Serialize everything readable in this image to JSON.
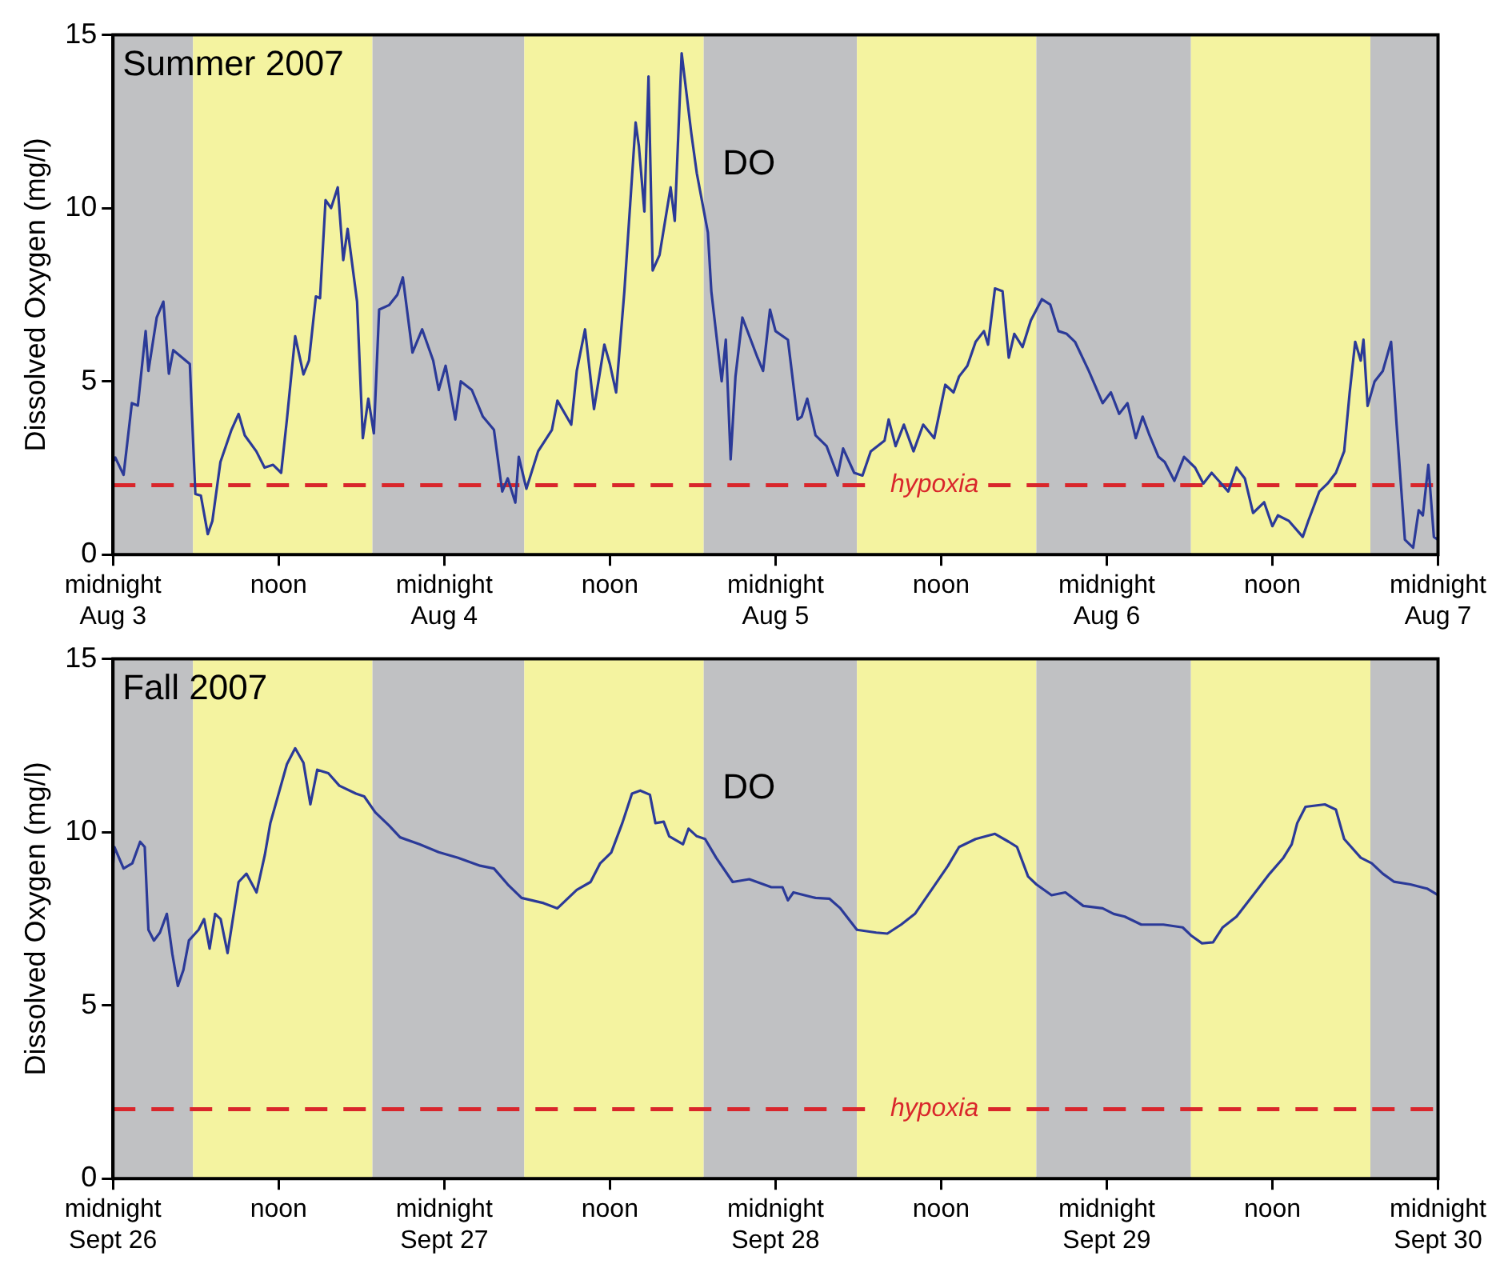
{
  "chart_data": [
    {
      "type": "line",
      "title": "Summer 2007",
      "ylabel": "Dissolved Oxygen (mg/l)",
      "xlim": [
        "2007-08-03T00:00",
        "2007-08-07T00:00"
      ],
      "xticks": [
        {
          "value": "2007-08-03T00:00",
          "label": "midnight\nAug 3"
        },
        {
          "value": "2007-08-03T12:00",
          "label": "noon"
        },
        {
          "value": "2007-08-04T00:00",
          "label": "midnight\nAug 4"
        },
        {
          "value": "2007-08-04T12:00",
          "label": "noon"
        },
        {
          "value": "2007-08-05T00:00",
          "label": "midnight\nAug 5"
        },
        {
          "value": "2007-08-05T12:00",
          "label": "noon"
        },
        {
          "value": "2007-08-06T00:00",
          "label": "midnight\nAug 6"
        },
        {
          "value": "2007-08-06T12:00",
          "label": "noon"
        },
        {
          "value": "2007-08-07T00:00",
          "label": "midnight\nAug 7"
        }
      ],
      "ylim": [
        0,
        15
      ],
      "yticks": [
        0,
        5,
        10,
        15
      ],
      "grid": false,
      "legend": false,
      "x": [
        "2007-08-03T00:00",
        "2007-08-03T00:10",
        "2007-08-03T00:46",
        "2007-08-03T01:22",
        "2007-08-03T01:48",
        "2007-08-03T02:22",
        "2007-08-03T02:34",
        "2007-08-03T03:10",
        "2007-08-03T03:39",
        "2007-08-03T04:03",
        "2007-08-03T04:22",
        "2007-08-03T05:34",
        "2007-08-03T05:58",
        "2007-08-03T06:22",
        "2007-08-03T06:52",
        "2007-08-03T07:12",
        "2007-08-03T07:47",
        "2007-08-03T08:35",
        "2007-08-03T09:06",
        "2007-08-03T09:33",
        "2007-08-03T10:23",
        "2007-08-03T10:59",
        "2007-08-03T11:36",
        "2007-08-03T12:11",
        "2007-08-03T12:36",
        "2007-08-03T13:12",
        "2007-08-03T13:48",
        "2007-08-03T14:12",
        "2007-08-03T14:42",
        "2007-08-03T15:00",
        "2007-08-03T15:24",
        "2007-08-03T15:48",
        "2007-08-03T16:17",
        "2007-08-03T16:41",
        "2007-08-03T17:00",
        "2007-08-03T17:41",
        "2007-08-03T18:06",
        "2007-08-03T18:30",
        "2007-08-03T18:54",
        "2007-08-03T19:17",
        "2007-08-03T20:00",
        "2007-08-03T20:36",
        "2007-08-03T21:00",
        "2007-08-03T21:42",
        "2007-08-03T22:24",
        "2007-08-03T23:12",
        "2007-08-03T23:36",
        "2007-08-04T00:06",
        "2007-08-04T00:48",
        "2007-08-04T01:12",
        "2007-08-04T02:00",
        "2007-08-04T02:48",
        "2007-08-04T03:36",
        "2007-08-04T04:12",
        "2007-08-04T04:36",
        "2007-08-04T05:09",
        "2007-08-04T05:24",
        "2007-08-04T05:57",
        "2007-08-04T06:48",
        "2007-08-04T07:48",
        "2007-08-04T08:12",
        "2007-08-04T09:12",
        "2007-08-04T09:36",
        "2007-08-04T10:12",
        "2007-08-04T10:51",
        "2007-08-04T11:36",
        "2007-08-04T12:00",
        "2007-08-04T12:27",
        "2007-08-04T13:03",
        "2007-08-04T13:52",
        "2007-08-04T14:06",
        "2007-08-04T14:30",
        "2007-08-04T14:48",
        "2007-08-04T15:06",
        "2007-08-04T15:36",
        "2007-08-04T16:24",
        "2007-08-04T16:42",
        "2007-08-04T17:12",
        "2007-08-04T17:54",
        "2007-08-04T18:18",
        "2007-08-04T19:06",
        "2007-08-04T19:21",
        "2007-08-04T20:06",
        "2007-08-04T20:24",
        "2007-08-04T20:45",
        "2007-08-04T21:06",
        "2007-08-04T21:36",
        "2007-08-04T22:42",
        "2007-08-04T23:06",
        "2007-08-04T23:36",
        "2007-08-05T00:00",
        "2007-08-05T00:54",
        "2007-08-05T01:36",
        "2007-08-05T01:54",
        "2007-08-05T02:18",
        "2007-08-05T02:54",
        "2007-08-05T03:42",
        "2007-08-05T04:30",
        "2007-08-05T04:54",
        "2007-08-05T05:42",
        "2007-08-05T06:18",
        "2007-08-05T06:54",
        "2007-08-05T07:54",
        "2007-08-05T08:12",
        "2007-08-05T08:42",
        "2007-08-05T09:18",
        "2007-08-05T10:00",
        "2007-08-05T10:42",
        "2007-08-05T11:30",
        "2007-08-05T12:18",
        "2007-08-05T12:54",
        "2007-08-05T13:18",
        "2007-08-05T13:54",
        "2007-08-05T14:30",
        "2007-08-05T15:06",
        "2007-08-05T15:24",
        "2007-08-05T15:54",
        "2007-08-05T16:27",
        "2007-08-05T16:54",
        "2007-08-05T17:18",
        "2007-08-05T17:54",
        "2007-08-05T18:30",
        "2007-08-05T19:18",
        "2007-08-05T19:54",
        "2007-08-05T20:30",
        "2007-08-05T21:06",
        "2007-08-05T21:42",
        "2007-08-05T22:42",
        "2007-08-05T23:42",
        "2007-08-06T00:18",
        "2007-08-06T00:54",
        "2007-08-06T01:30",
        "2007-08-06T02:06",
        "2007-08-06T02:36",
        "2007-08-06T03:06",
        "2007-08-06T03:45",
        "2007-08-06T04:12",
        "2007-08-06T04:54",
        "2007-08-06T05:36",
        "2007-08-06T06:24",
        "2007-08-06T07:00",
        "2007-08-06T07:36",
        "2007-08-06T08:48",
        "2007-08-06T09:24",
        "2007-08-06T10:00",
        "2007-08-06T10:36",
        "2007-08-06T11:24",
        "2007-08-06T12:00",
        "2007-08-06T12:24",
        "2007-08-06T13:12",
        "2007-08-06T14:12",
        "2007-08-06T14:36",
        "2007-08-06T15:24",
        "2007-08-06T16:00",
        "2007-08-06T16:36",
        "2007-08-06T17:12",
        "2007-08-06T17:36",
        "2007-08-06T18:00",
        "2007-08-06T18:24",
        "2007-08-06T18:36",
        "2007-08-06T18:54",
        "2007-08-06T19:24",
        "2007-08-06T20:00",
        "2007-08-06T20:36",
        "2007-08-06T21:00",
        "2007-08-06T21:36",
        "2007-08-06T22:12",
        "2007-08-06T22:36",
        "2007-08-06T22:54",
        "2007-08-06T23:18",
        "2007-08-06T23:42",
        "2007-08-07T00:00"
      ],
      "series": [
        {
          "color": "#2b3a98",
          "values": [
            2.67,
            2.8,
            2.3,
            4.37,
            4.3,
            6.45,
            5.3,
            6.84,
            7.3,
            5.22,
            5.9,
            5.5,
            1.75,
            1.7,
            0.59,
            0.97,
            2.67,
            3.6,
            4.06,
            3.44,
            2.98,
            2.51,
            2.59,
            2.36,
            3.9,
            6.3,
            5.2,
            5.6,
            7.45,
            7.4,
            10.23,
            10.0,
            10.6,
            8.5,
            9.4,
            7.3,
            3.36,
            4.5,
            3.5,
            7.07,
            7.2,
            7.5,
            8.0,
            5.83,
            6.5,
            5.6,
            4.75,
            5.45,
            3.9,
            5.0,
            4.75,
            3.98,
            3.6,
            1.82,
            2.2,
            1.5,
            2.82,
            1.9,
            2.98,
            3.6,
            4.44,
            3.75,
            5.3,
            6.5,
            4.2,
            6.06,
            5.5,
            4.68,
            7.6,
            12.47,
            11.8,
            9.9,
            13.8,
            8.2,
            8.65,
            10.6,
            9.63,
            14.47,
            12.16,
            11.0,
            9.3,
            7.6,
            5.0,
            6.2,
            2.75,
            5.14,
            6.84,
            5.68,
            5.3,
            7.07,
            6.45,
            6.2,
            3.9,
            3.98,
            4.5,
            3.44,
            3.13,
            2.28,
            3.06,
            2.36,
            2.28,
            2.98,
            3.29,
            3.9,
            3.13,
            3.75,
            2.98,
            3.75,
            3.36,
            4.9,
            4.68,
            5.14,
            5.45,
            6.14,
            6.45,
            6.06,
            7.68,
            7.6,
            5.68,
            6.37,
            5.99,
            6.76,
            7.37,
            7.22,
            6.45,
            6.37,
            6.14,
            5.3,
            4.37,
            4.68,
            4.06,
            4.37,
            3.36,
            3.98,
            3.44,
            2.82,
            2.67,
            2.13,
            2.82,
            2.51,
            2.05,
            2.36,
            1.82,
            2.51,
            2.2,
            1.2,
            1.51,
            0.82,
            1.13,
            0.97,
            0.51,
            0.97,
            1.82,
            2.05,
            2.36,
            2.98,
            4.68,
            6.14,
            5.6,
            6.2,
            4.29,
            4.99,
            5.3,
            6.14,
            3.75,
            0.43,
            0.2,
            1.28,
            1.13,
            2.59,
            0.51,
            0.43
          ]
        }
      ],
      "ref_lines": [
        {
          "axis": "y",
          "value": 2,
          "label": "hypoxia",
          "color": "#d9262b",
          "line_style": "dashed"
        }
      ],
      "bands": [
        {
          "axis": "x",
          "from": "2007-08-03T00:00",
          "to": "2007-08-03T05:48",
          "color": "#c0c1c3"
        },
        {
          "axis": "x",
          "from": "2007-08-03T05:48",
          "to": "2007-08-03T18:48",
          "color": "#f4f3a0"
        },
        {
          "axis": "x",
          "from": "2007-08-03T18:48",
          "to": "2007-08-04T05:48",
          "color": "#c0c1c3"
        },
        {
          "axis": "x",
          "from": "2007-08-04T05:48",
          "to": "2007-08-04T18:48",
          "color": "#f4f3a0"
        },
        {
          "axis": "x",
          "from": "2007-08-04T18:48",
          "to": "2007-08-05T05:54",
          "color": "#c0c1c3"
        },
        {
          "axis": "x",
          "from": "2007-08-05T05:54",
          "to": "2007-08-05T18:54",
          "color": "#f4f3a0"
        },
        {
          "axis": "x",
          "from": "2007-08-05T18:54",
          "to": "2007-08-06T06:06",
          "color": "#c0c1c3"
        },
        {
          "axis": "x",
          "from": "2007-08-06T06:06",
          "to": "2007-08-06T19:06",
          "color": "#f4f3a0"
        },
        {
          "axis": "x",
          "from": "2007-08-06T19:06",
          "to": "2007-08-07T00:00",
          "color": "#c0c1c3"
        }
      ],
      "annotations": [
        "DO"
      ]
    },
    {
      "type": "line",
      "title": "Fall 2007",
      "ylabel": "Dissolved Oxygen (mg/l)",
      "xlim": [
        "2007-09-26T00:00",
        "2007-09-30T00:00"
      ],
      "xticks": [
        {
          "value": "2007-09-26T00:00",
          "label": "midnight\nSept 26"
        },
        {
          "value": "2007-09-26T12:00",
          "label": "noon"
        },
        {
          "value": "2007-09-27T00:00",
          "label": "midnight\nSept 27"
        },
        {
          "value": "2007-09-27T12:00",
          "label": "noon"
        },
        {
          "value": "2007-09-28T00:00",
          "label": "midnight\nSept 28"
        },
        {
          "value": "2007-09-28T12:00",
          "label": "noon"
        },
        {
          "value": "2007-09-29T00:00",
          "label": "midnight\nSept 29"
        },
        {
          "value": "2007-09-29T12:00",
          "label": "noon"
        },
        {
          "value": "2007-09-30T00:00",
          "label": "midnight\nSept 30"
        }
      ],
      "ylim": [
        0,
        15
      ],
      "yticks": [
        0,
        5,
        10,
        15
      ],
      "grid": false,
      "legend": false,
      "x": [
        "2007-09-26T00:00",
        "2007-09-26T00:06",
        "2007-09-26T00:46",
        "2007-09-26T01:24",
        "2007-09-26T01:58",
        "2007-09-26T02:18",
        "2007-09-26T02:34",
        "2007-09-26T02:58",
        "2007-09-26T03:24",
        "2007-09-26T03:54",
        "2007-09-26T04:18",
        "2007-09-26T04:42",
        "2007-09-26T05:06",
        "2007-09-26T05:30",
        "2007-09-26T06:12",
        "2007-09-26T06:36",
        "2007-09-26T07:00",
        "2007-09-26T07:24",
        "2007-09-26T07:48",
        "2007-09-26T08:18",
        "2007-09-26T09:06",
        "2007-09-26T09:40",
        "2007-09-26T10:24",
        "2007-09-26T11:00",
        "2007-09-26T11:24",
        "2007-09-26T12:00",
        "2007-09-26T12:36",
        "2007-09-26T13:12",
        "2007-09-26T13:48",
        "2007-09-26T14:18",
        "2007-09-26T14:48",
        "2007-09-26T15:36",
        "2007-09-26T16:24",
        "2007-09-26T17:36",
        "2007-09-26T18:12",
        "2007-09-26T19:00",
        "2007-09-26T20:00",
        "2007-09-26T20:48",
        "2007-09-26T22:12",
        "2007-09-26T23:36",
        "2007-09-27T01:00",
        "2007-09-27T02:36",
        "2007-09-27T03:36",
        "2007-09-27T04:36",
        "2007-09-27T05:36",
        "2007-09-27T07:12",
        "2007-09-27T08:12",
        "2007-09-27T09:36",
        "2007-09-27T10:36",
        "2007-09-27T11:18",
        "2007-09-27T12:06",
        "2007-09-27T12:54",
        "2007-09-27T13:36",
        "2007-09-27T14:12",
        "2007-09-27T14:54",
        "2007-09-27T15:18",
        "2007-09-27T15:54",
        "2007-09-27T16:18",
        "2007-09-27T17:18",
        "2007-09-27T17:42",
        "2007-09-27T18:18",
        "2007-09-27T18:54",
        "2007-09-27T19:42",
        "2007-09-27T20:54",
        "2007-09-27T22:06",
        "2007-09-27T23:42",
        "2007-09-28T00:30",
        "2007-09-28T00:54",
        "2007-09-28T01:18",
        "2007-09-28T02:54",
        "2007-09-28T03:54",
        "2007-09-28T04:42",
        "2007-09-28T05:54",
        "2007-09-28T07:18",
        "2007-09-28T08:06",
        "2007-09-28T09:06",
        "2007-09-28T10:06",
        "2007-09-28T11:18",
        "2007-09-28T12:30",
        "2007-09-28T13:18",
        "2007-09-28T14:30",
        "2007-09-28T15:54",
        "2007-09-28T16:54",
        "2007-09-28T17:30",
        "2007-09-28T18:18",
        "2007-09-28T18:54",
        "2007-09-28T20:00",
        "2007-09-28T21:00",
        "2007-09-28T22:18",
        "2007-09-28T23:42",
        "2007-09-29T00:30",
        "2007-09-29T01:18",
        "2007-09-29T02:30",
        "2007-09-29T04:06",
        "2007-09-29T05:30",
        "2007-09-29T06:06",
        "2007-09-29T06:54",
        "2007-09-29T07:42",
        "2007-09-29T08:24",
        "2007-09-29T09:24",
        "2007-09-29T10:36",
        "2007-09-29T11:48",
        "2007-09-29T12:48",
        "2007-09-29T13:24",
        "2007-09-29T13:48",
        "2007-09-29T14:24",
        "2007-09-29T15:48",
        "2007-09-29T16:36",
        "2007-09-29T17:12",
        "2007-09-29T18:24",
        "2007-09-29T19:12",
        "2007-09-29T20:00",
        "2007-09-29T20:48",
        "2007-09-29T22:00",
        "2007-09-29T23:12",
        "2007-09-30T00:00"
      ],
      "series": [
        {
          "color": "#2b3a98",
          "values": [
            9.03,
            9.57,
            8.95,
            9.1,
            9.72,
            9.57,
            7.18,
            6.87,
            7.1,
            7.64,
            6.48,
            5.56,
            6.02,
            6.87,
            7.18,
            7.49,
            6.64,
            7.64,
            7.49,
            6.51,
            8.56,
            8.8,
            8.26,
            9.34,
            10.26,
            11.11,
            11.96,
            12.42,
            12.0,
            10.8,
            11.8,
            11.7,
            11.34,
            11.11,
            11.03,
            10.57,
            10.19,
            9.85,
            9.65,
            9.42,
            9.26,
            9.03,
            8.95,
            8.49,
            8.1,
            7.95,
            7.8,
            8.33,
            8.56,
            9.1,
            9.41,
            10.26,
            11.11,
            11.2,
            11.08,
            10.26,
            10.3,
            9.88,
            9.65,
            10.1,
            9.88,
            9.8,
            9.26,
            8.56,
            8.64,
            8.41,
            8.41,
            8.03,
            8.26,
            8.1,
            8.08,
            7.8,
            7.18,
            7.1,
            7.07,
            7.33,
            7.64,
            8.33,
            9.03,
            9.57,
            9.8,
            9.95,
            9.72,
            9.57,
            8.72,
            8.49,
            8.18,
            8.26,
            7.87,
            7.8,
            7.64,
            7.56,
            7.33,
            7.33,
            7.25,
            7.02,
            6.79,
            6.82,
            7.25,
            7.56,
            8.18,
            8.8,
            9.26,
            9.65,
            10.26,
            10.73,
            10.8,
            10.65,
            9.8,
            9.26,
            9.1,
            8.8,
            8.57,
            8.49,
            8.37,
            8.18
          ]
        }
      ],
      "ref_lines": [
        {
          "axis": "y",
          "value": 2,
          "label": "hypoxia",
          "color": "#d9262b",
          "line_style": "dashed"
        }
      ],
      "bands": [
        {
          "axis": "x",
          "from": "2007-09-26T00:00",
          "to": "2007-09-26T05:48",
          "color": "#c0c1c3"
        },
        {
          "axis": "x",
          "from": "2007-09-26T05:48",
          "to": "2007-09-26T18:48",
          "color": "#f4f3a0"
        },
        {
          "axis": "x",
          "from": "2007-09-26T18:48",
          "to": "2007-09-27T05:48",
          "color": "#c0c1c3"
        },
        {
          "axis": "x",
          "from": "2007-09-27T05:48",
          "to": "2007-09-27T18:48",
          "color": "#f4f3a0"
        },
        {
          "axis": "x",
          "from": "2007-09-27T18:48",
          "to": "2007-09-28T05:54",
          "color": "#c0c1c3"
        },
        {
          "axis": "x",
          "from": "2007-09-28T05:54",
          "to": "2007-09-28T18:54",
          "color": "#f4f3a0"
        },
        {
          "axis": "x",
          "from": "2007-09-28T18:54",
          "to": "2007-09-29T06:06",
          "color": "#c0c1c3"
        },
        {
          "axis": "x",
          "from": "2007-09-29T06:06",
          "to": "2007-09-29T19:06",
          "color": "#f4f3a0"
        },
        {
          "axis": "x",
          "from": "2007-09-29T19:06",
          "to": "2007-09-30T00:00",
          "color": "#c0c1c3"
        }
      ],
      "annotations": [
        "DO"
      ]
    }
  ]
}
